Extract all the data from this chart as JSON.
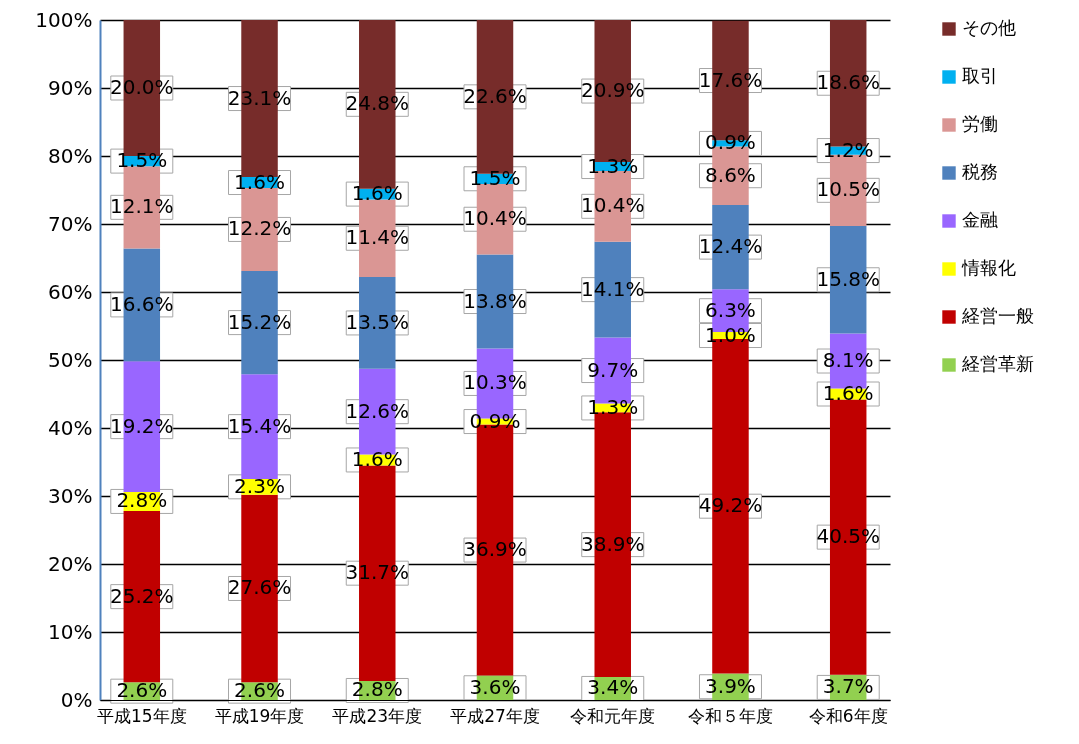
{
  "chart_data": {
    "type": "bar",
    "stacked": true,
    "categories": [
      "平成15年度",
      "平成19年度",
      "平成23年度",
      "平成27年度",
      "令和元年度",
      "令和５年度",
      "令和6年度"
    ],
    "series": [
      {
        "name": "経営革新",
        "color": "#92d050",
        "values": [
          2.6,
          2.6,
          2.8,
          3.6,
          3.4,
          3.9,
          3.7
        ],
        "value_labels": [
          "2.6%",
          "2.6%",
          "2.8%",
          "3.6%",
          "3.4%",
          "3.9%",
          "3.7%"
        ]
      },
      {
        "name": "経営一般",
        "color": "#c00000",
        "values": [
          25.2,
          27.6,
          31.7,
          36.9,
          38.9,
          49.2,
          40.5
        ],
        "value_labels": [
          "25.2%",
          "27.6%",
          "31.7%",
          "36.9%",
          "38.9%",
          "49.2%",
          "40.5%"
        ]
      },
      {
        "name": "情報化",
        "color": "#ffff00",
        "values": [
          2.8,
          2.3,
          1.6,
          0.9,
          1.3,
          1.0,
          1.6
        ],
        "value_labels": [
          "2.8%",
          "2.3%",
          "1.6%",
          "0.9%",
          "1.3%",
          "1.0%",
          "1.6%"
        ]
      },
      {
        "name": "金融",
        "color": "#9966ff",
        "values": [
          19.2,
          15.4,
          12.6,
          10.3,
          9.7,
          6.3,
          8.1
        ],
        "value_labels": [
          "19.2%",
          "15.4%",
          "12.6%",
          "10.3%",
          "9.7%",
          "6.3%",
          "8.1%"
        ]
      },
      {
        "name": "税務",
        "color": "#4f81bd",
        "values": [
          16.6,
          15.2,
          13.5,
          13.8,
          14.1,
          12.4,
          15.8
        ],
        "value_labels": [
          "16.6%",
          "15.2%",
          "13.5%",
          "13.8%",
          "14.1%",
          "12.4%",
          "15.8%"
        ]
      },
      {
        "name": "労働",
        "color": "#da9694",
        "values": [
          12.1,
          12.2,
          11.4,
          10.4,
          10.4,
          8.6,
          10.5
        ],
        "value_labels": [
          "12.1%",
          "12.2%",
          "11.4%",
          "10.4%",
          "10.4%",
          "8.6%",
          "10.5%"
        ]
      },
      {
        "name": "取引",
        "color": "#00b0f0",
        "values": [
          1.5,
          1.6,
          1.6,
          1.5,
          1.3,
          0.9,
          1.2
        ],
        "value_labels": [
          "1.5%",
          "1.6%",
          "1.6%",
          "1.5%",
          "1.3%",
          "0.9%",
          "1.2%"
        ]
      },
      {
        "name": "その他",
        "color": "#772c2a",
        "values": [
          20.0,
          23.1,
          24.8,
          22.6,
          20.9,
          17.6,
          18.6
        ],
        "value_labels": [
          "20.0%",
          "23.1%",
          "24.8%",
          "22.6%",
          "20.9%",
          "17.6%",
          "18.6%"
        ]
      }
    ],
    "ylim": [
      0,
      100
    ],
    "yticks": [
      {
        "value": 0,
        "label": "0%"
      },
      {
        "value": 10,
        "label": "10%"
      },
      {
        "value": 20,
        "label": "20%"
      },
      {
        "value": 30,
        "label": "30%"
      },
      {
        "value": 40,
        "label": "40%"
      },
      {
        "value": 50,
        "label": "50%"
      },
      {
        "value": 60,
        "label": "60%"
      },
      {
        "value": 70,
        "label": "70%"
      },
      {
        "value": 80,
        "label": "80%"
      },
      {
        "value": 90,
        "label": "90%"
      },
      {
        "value": 100,
        "label": "100%"
      }
    ],
    "grid": true,
    "legend": "right"
  }
}
